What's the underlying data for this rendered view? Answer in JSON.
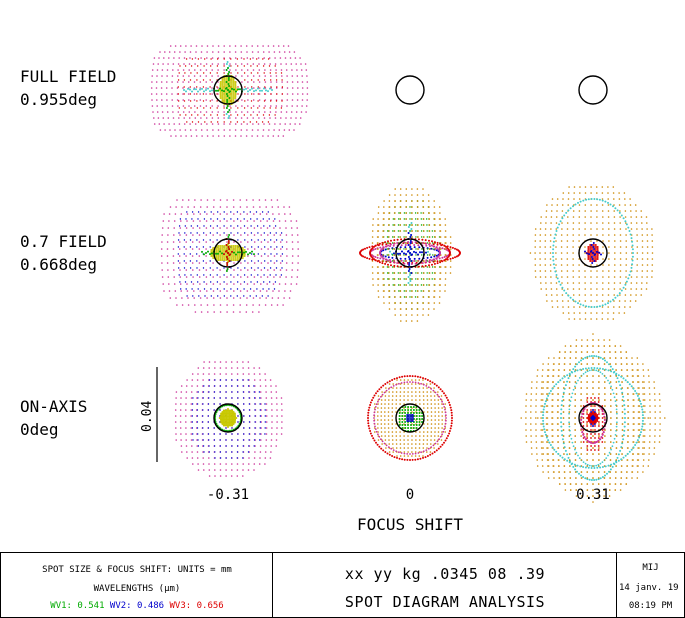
{
  "rows": [
    {
      "label_line1": "FULL FIELD",
      "label_line2": "0.955deg"
    },
    {
      "label_line1": "0.7 FIELD",
      "label_line2": "0.668deg"
    },
    {
      "label_line1": "ON-AXIS",
      "label_line2": "0deg"
    }
  ],
  "focus_values": [
    "-0.31",
    "0",
    "0.31"
  ],
  "xaxis_title": "FOCUS SHIFT",
  "scale_bar_label": "0.04",
  "footer": {
    "units_line": "SPOT SIZE & FOCUS SHIFT: UNITS = mm",
    "wavelengths_label": "WAVELENGTHS (μm)",
    "wavelengths": [
      {
        "label": "WV1: 0.541",
        "color": "#00aa00"
      },
      {
        "label": "WV2: 0.486",
        "color": "#0000cc"
      },
      {
        "label": "WV3: 0.656",
        "color": "#dd0000"
      }
    ],
    "title_code": "xx yy kg .0345 08 .39",
    "title": "SPOT DIAGRAM ANALYSIS",
    "author": "MIJ",
    "date": "14 janv. 19",
    "time": "08:19 PM"
  }
}
